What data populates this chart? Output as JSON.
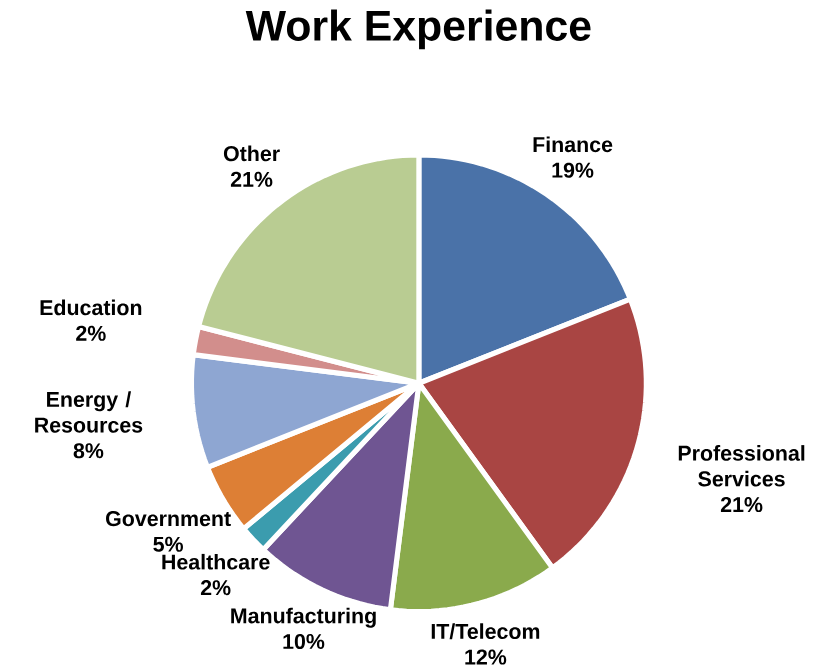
{
  "chart_data": {
    "type": "pie",
    "title": "Work Experience",
    "categories": [
      "Finance",
      "Professional Services",
      "IT/Telecom",
      "Manufacturing",
      "Healthcare",
      "Government",
      "Energy / Resources",
      "Education",
      "Other"
    ],
    "values": [
      19,
      21,
      12,
      10,
      2,
      5,
      8,
      2,
      21
    ],
    "value_labels": [
      "19%",
      "21%",
      "12%",
      "10%",
      "2%",
      "5%",
      "8%",
      "2%",
      "21%"
    ],
    "colors": [
      "#4a72a8",
      "#a94543",
      "#8aaa4c",
      "#6f5592",
      "#3b9cae",
      "#dd7f35",
      "#8ea6d2",
      "#d28e8c",
      "#b9cc92"
    ]
  }
}
